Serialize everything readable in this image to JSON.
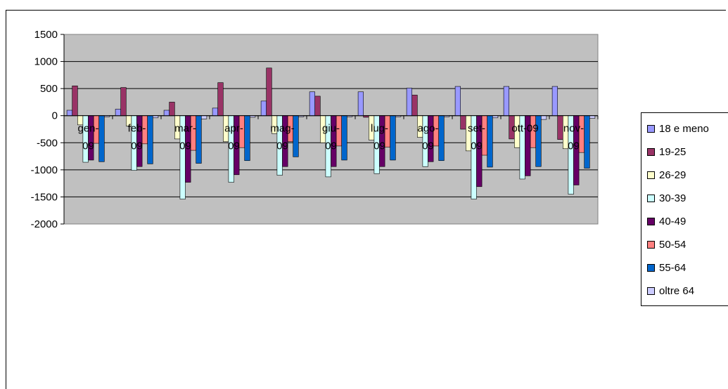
{
  "chart_data": {
    "type": "bar",
    "title": "",
    "xlabel": "",
    "ylabel": "",
    "ylim": [
      -2000,
      1500
    ],
    "yticks": [
      1500,
      1000,
      500,
      0,
      -500,
      -1000,
      -1500,
      -2000
    ],
    "grid": true,
    "legend": "right",
    "categories": [
      "gen-09",
      "feb-09",
      "mar-09",
      "apr-09",
      "mag-09",
      "giu-09",
      "lug-09",
      "ago-09",
      "set-09",
      "ott-09",
      "nov-09"
    ],
    "category_label_lines": [
      [
        "gen-",
        "09"
      ],
      [
        "feb-",
        "09"
      ],
      [
        "mar-",
        "09"
      ],
      [
        "apr-",
        "09"
      ],
      [
        "mag-",
        "09"
      ],
      [
        "giu-",
        "09"
      ],
      [
        "lug-",
        "09"
      ],
      [
        "ago-",
        "09"
      ],
      [
        "set-",
        "09"
      ],
      [
        "ott-09",
        ""
      ],
      [
        "nov-",
        "09"
      ]
    ],
    "series": [
      {
        "name": "18 e meno",
        "color": "#9999ff",
        "values": [
          100,
          120,
          100,
          140,
          270,
          440,
          440,
          510,
          540,
          540,
          540
        ]
      },
      {
        "name": "19-25",
        "color": "#993366",
        "values": [
          550,
          520,
          250,
          610,
          880,
          360,
          -30,
          380,
          -250,
          -430,
          -440
        ]
      },
      {
        "name": "26-29",
        "color": "#ffffcc",
        "values": [
          -170,
          -190,
          -430,
          -480,
          -330,
          -500,
          -450,
          -400,
          -650,
          -590,
          -610
        ]
      },
      {
        "name": "30-39",
        "color": "#ccffff",
        "values": [
          -860,
          -1010,
          -1540,
          -1230,
          -1100,
          -1130,
          -1070,
          -940,
          -1540,
          -1170,
          -1450
        ]
      },
      {
        "name": "40-49",
        "color": "#660066",
        "values": [
          -820,
          -940,
          -1230,
          -1090,
          -940,
          -940,
          -940,
          -850,
          -1310,
          -1110,
          -1280
        ]
      },
      {
        "name": "50-54",
        "color": "#ff8080",
        "values": [
          -510,
          -520,
          -640,
          -590,
          -480,
          -560,
          -580,
          -560,
          -730,
          -590,
          -680
        ]
      },
      {
        "name": "55-64",
        "color": "#0066cc",
        "values": [
          -850,
          -890,
          -880,
          -830,
          -760,
          -820,
          -820,
          -830,
          -950,
          -940,
          -970
        ]
      },
      {
        "name": "oltre 64",
        "color": "#ccccff",
        "values": [
          -20,
          -40,
          -60,
          -30,
          -20,
          -20,
          -20,
          -20,
          -40,
          -70,
          -50
        ]
      }
    ]
  }
}
